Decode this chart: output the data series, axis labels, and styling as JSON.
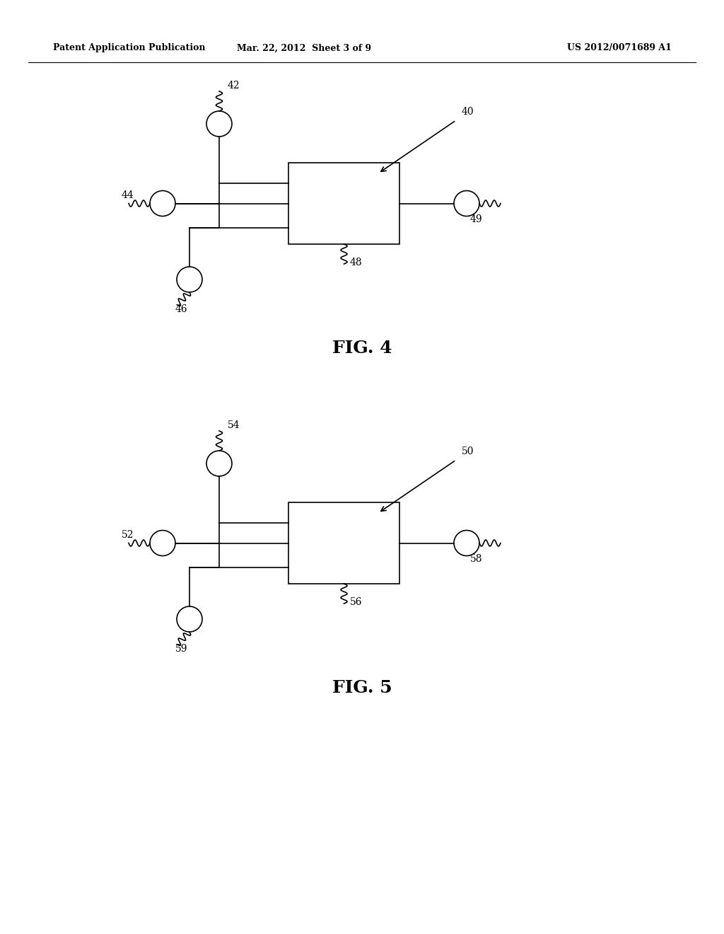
{
  "background_color": "#ffffff",
  "header_left": "Patent Application Publication",
  "header_mid": "Mar. 22, 2012  Sheet 3 of 9",
  "header_right": "US 2012/0071689 A1",
  "fig4_label": "FIG. 4",
  "fig5_label": "FIG. 5",
  "lw": 1.2
}
